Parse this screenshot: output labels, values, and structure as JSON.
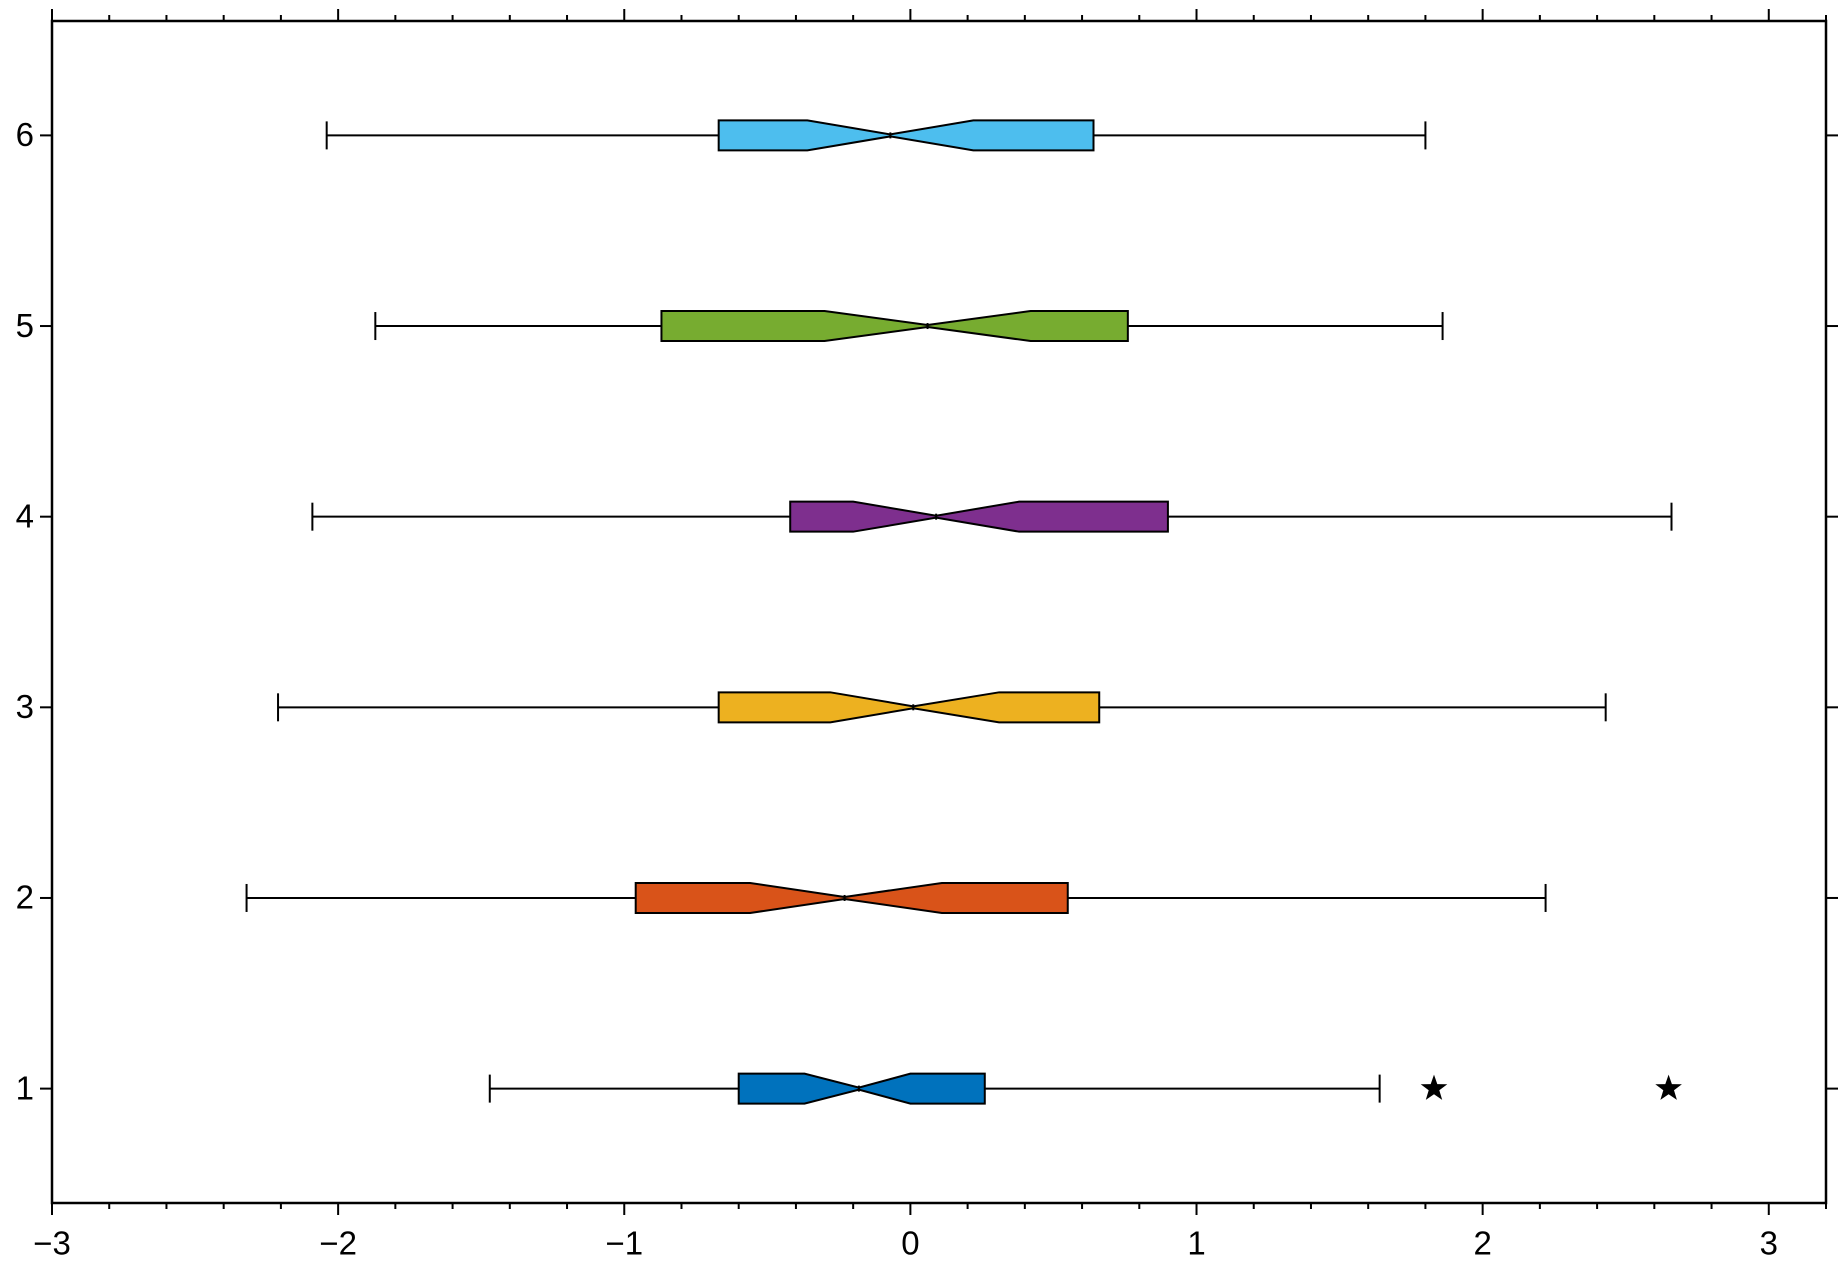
{
  "chart_data": {
    "type": "boxplot",
    "orientation": "horizontal",
    "notched": true,
    "xlim": [
      -3,
      3.2
    ],
    "ylim": [
      0.4,
      6.6
    ],
    "xticks": [
      {
        "value": -3,
        "label": "−3"
      },
      {
        "value": -2,
        "label": "−2"
      },
      {
        "value": -1,
        "label": "−1"
      },
      0,
      1,
      2,
      3
    ],
    "xminorticks": [
      -2.8,
      -2.6,
      -2.4,
      -2.2,
      -1.8,
      -1.6,
      -1.4,
      -1.2,
      -0.8,
      -0.6,
      -0.4,
      -0.2,
      0.2,
      0.4,
      0.6,
      0.8,
      1.2,
      1.4,
      1.6,
      1.8,
      2.2,
      2.4,
      2.6,
      2.8,
      3.2
    ],
    "yticks": [
      1,
      2,
      3,
      4,
      5,
      6
    ],
    "outlier_marker": "star",
    "boxes": [
      {
        "y": 1,
        "color": "#0072bd",
        "whisker_low": -1.47,
        "q1": -0.6,
        "notch_low": -0.37,
        "median": -0.18,
        "notch_high": 0.0,
        "q3": 0.26,
        "whisker_high": 1.64,
        "outliers": [
          1.83,
          2.65
        ]
      },
      {
        "y": 2,
        "color": "#d95319",
        "whisker_low": -2.32,
        "q1": -0.96,
        "notch_low": -0.56,
        "median": -0.23,
        "notch_high": 0.11,
        "q3": 0.55,
        "whisker_high": 2.22,
        "outliers": []
      },
      {
        "y": 3,
        "color": "#edb120",
        "whisker_low": -2.21,
        "q1": -0.67,
        "notch_low": -0.28,
        "median": 0.01,
        "notch_high": 0.31,
        "q3": 0.66,
        "whisker_high": 2.43,
        "outliers": []
      },
      {
        "y": 4,
        "color": "#7e2f8e",
        "whisker_low": -2.09,
        "q1": -0.42,
        "notch_low": -0.2,
        "median": 0.09,
        "notch_high": 0.38,
        "q3": 0.9,
        "whisker_high": 2.66,
        "outliers": []
      },
      {
        "y": 5,
        "color": "#77ac30",
        "whisker_low": -1.87,
        "q1": -0.87,
        "notch_low": -0.3,
        "median": 0.06,
        "notch_high": 0.42,
        "q3": 0.76,
        "whisker_high": 1.86,
        "outliers": []
      },
      {
        "y": 6,
        "color": "#4dbeee",
        "whisker_low": -2.04,
        "q1": -0.67,
        "notch_low": -0.36,
        "median": -0.07,
        "notch_high": 0.22,
        "q3": 0.64,
        "whisker_high": 1.8,
        "outliers": []
      }
    ]
  }
}
